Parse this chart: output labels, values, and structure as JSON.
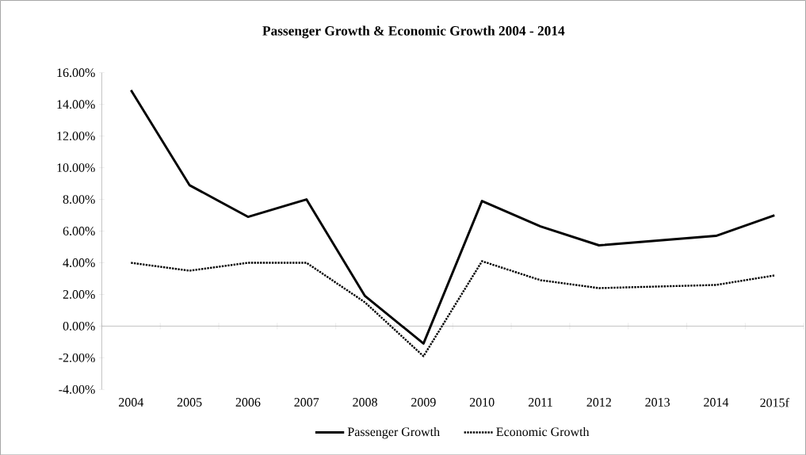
{
  "chart_data": {
    "type": "line",
    "title": "Passenger Growth & Economic Growth 2004 - 2014",
    "categories": [
      "2004",
      "2005",
      "2006",
      "2007",
      "2008",
      "2009",
      "2010",
      "2011",
      "2012",
      "2013",
      "2014",
      "2015f"
    ],
    "series": [
      {
        "name": "Passenger Growth",
        "color": "#000000",
        "line_style": "solid",
        "values": [
          14.9,
          8.9,
          6.9,
          8.0,
          1.9,
          -1.1,
          7.9,
          6.3,
          5.1,
          5.4,
          5.7,
          7.0
        ]
      },
      {
        "name": "Economic Growth",
        "color": "#000000",
        "line_style": "dotted",
        "values": [
          4.0,
          3.5,
          4.0,
          4.0,
          1.5,
          -1.9,
          4.1,
          2.9,
          2.4,
          2.5,
          2.6,
          3.2
        ]
      }
    ],
    "ylim": [
      -4,
      16
    ],
    "yticks": [
      {
        "value": -4,
        "label": "-4.00%"
      },
      {
        "value": -2,
        "label": "-2.00%"
      },
      {
        "value": 0,
        "label": "0.00%"
      },
      {
        "value": 2,
        "label": "2.00%"
      },
      {
        "value": 4,
        "label": "4.00%"
      },
      {
        "value": 6,
        "label": "6.00%"
      },
      {
        "value": 8,
        "label": "8.00%"
      },
      {
        "value": 10,
        "label": "10.00%"
      },
      {
        "value": 12,
        "label": "12.00%"
      },
      {
        "value": 14,
        "label": "14.00%"
      },
      {
        "value": 16,
        "label": "16.00%"
      }
    ],
    "legend": "bottom",
    "marker": "none"
  }
}
